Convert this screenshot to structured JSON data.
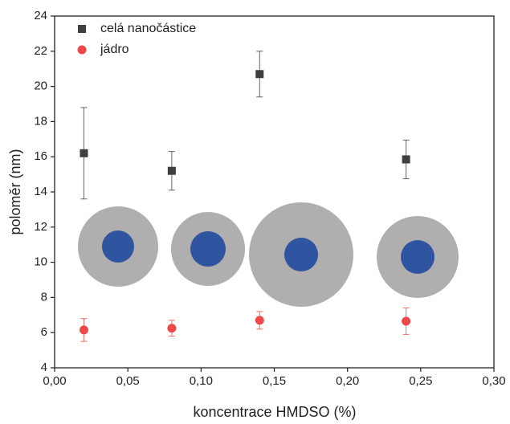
{
  "chart_data": {
    "type": "scatter",
    "xlabel": "koncentrace HMDSO (%)",
    "ylabel": "poloměr (nm)",
    "xlim": [
      0,
      0.3
    ],
    "ylim": [
      4,
      24
    ],
    "xticks": [
      {
        "value": 0,
        "label": "0,00"
      },
      {
        "value": 0.05,
        "label": "0,05"
      },
      {
        "value": 0.1,
        "label": "0,10"
      },
      {
        "value": 0.15,
        "label": "0,15"
      },
      {
        "value": 0.2,
        "label": "0,20"
      },
      {
        "value": 0.25,
        "label": "0,25"
      },
      {
        "value": 0.3,
        "label": "0,30"
      }
    ],
    "yticks": [
      4,
      6,
      8,
      10,
      12,
      14,
      16,
      18,
      20,
      22,
      24
    ],
    "legend": "upper left",
    "series": [
      {
        "name": "celá nanočástice",
        "color": "#3f3f3f",
        "marker": "square",
        "x": [
          0.02,
          0.08,
          0.14,
          0.24
        ],
        "values": [
          16.2,
          15.2,
          20.7,
          15.85
        ],
        "errors": [
          2.6,
          1.1,
          1.3,
          1.1
        ]
      },
      {
        "name": "jádro",
        "color": "#f04848",
        "marker": "circle",
        "x": [
          0.02,
          0.08,
          0.14,
          0.24
        ],
        "values": [
          6.15,
          6.25,
          6.7,
          6.65
        ],
        "errors": [
          0.65,
          0.45,
          0.5,
          0.75
        ]
      }
    ]
  }
}
